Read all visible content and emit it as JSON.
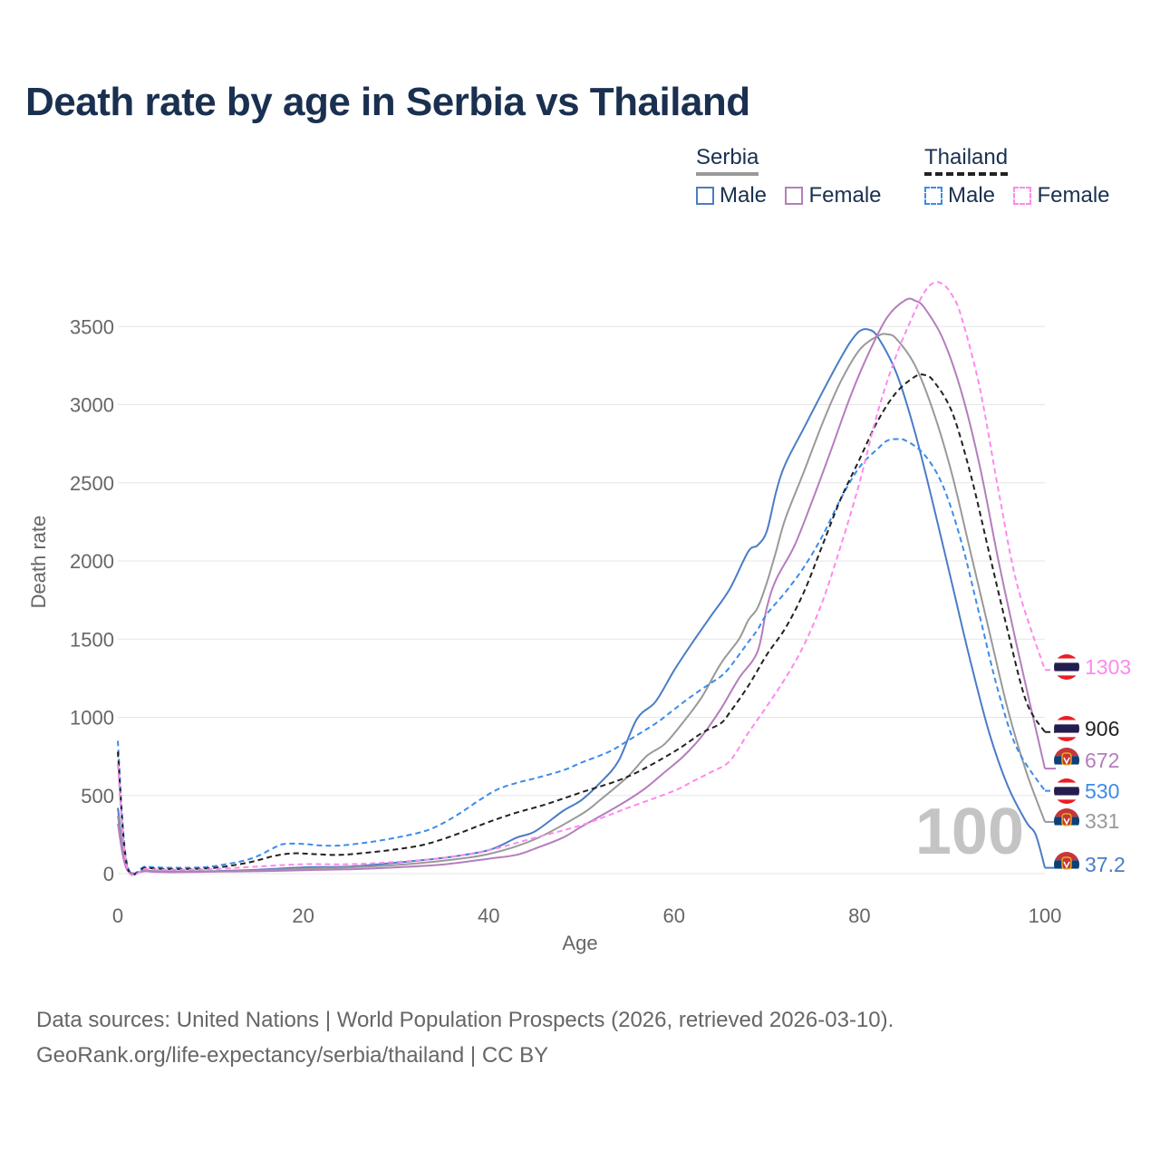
{
  "chart_data": {
    "type": "line",
    "title": "Death rate by age in Serbia vs Thailand",
    "xlabel": "Age",
    "ylabel": "Death rate",
    "xlim": [
      0,
      100
    ],
    "ylim": [
      0,
      3800
    ],
    "x_ticks": [
      0,
      20,
      40,
      60,
      80,
      100
    ],
    "y_ticks": [
      0,
      500,
      1000,
      1500,
      2000,
      2500,
      3000,
      3500
    ],
    "watermark": "100",
    "legend": {
      "groups": [
        {
          "name": "Serbia",
          "items": [
            {
              "label": "Male",
              "color": "#4a7cc7",
              "dash": "solid"
            },
            {
              "label": "Female",
              "color": "#b57dbd",
              "dash": "solid"
            }
          ],
          "color": "#999999",
          "dash": "solid"
        },
        {
          "name": "Thailand",
          "items": [
            {
              "label": "Male",
              "color": "#3d8bea",
              "dash": "dashed"
            },
            {
              "label": "Female",
              "color": "#ff88ee",
              "dash": "dashed"
            }
          ],
          "color": "#222222",
          "dash": "dashed"
        }
      ]
    },
    "series": [
      {
        "name": "Serbia Male",
        "country": "Serbia",
        "color": "#4a7cc7",
        "dash": "solid",
        "end_label": "37.2",
        "points": [
          [
            0,
            420
          ],
          [
            1,
            35
          ],
          [
            3,
            20
          ],
          [
            5,
            15
          ],
          [
            10,
            15
          ],
          [
            15,
            25
          ],
          [
            20,
            40
          ],
          [
            25,
            45
          ],
          [
            30,
            70
          ],
          [
            35,
            100
          ],
          [
            40,
            150
          ],
          [
            43,
            230
          ],
          [
            45,
            270
          ],
          [
            48,
            400
          ],
          [
            50,
            470
          ],
          [
            52,
            580
          ],
          [
            54,
            720
          ],
          [
            56,
            990
          ],
          [
            58,
            1100
          ],
          [
            60,
            1300
          ],
          [
            62,
            1480
          ],
          [
            64,
            1650
          ],
          [
            66,
            1820
          ],
          [
            68,
            2060
          ],
          [
            69,
            2100
          ],
          [
            70,
            2190
          ],
          [
            71,
            2440
          ],
          [
            72,
            2620
          ],
          [
            74,
            2850
          ],
          [
            76,
            3080
          ],
          [
            78,
            3300
          ],
          [
            79,
            3400
          ],
          [
            80,
            3470
          ],
          [
            81,
            3480
          ],
          [
            82,
            3430
          ],
          [
            84,
            3200
          ],
          [
            86,
            2820
          ],
          [
            88,
            2350
          ],
          [
            90,
            1850
          ],
          [
            92,
            1350
          ],
          [
            94,
            900
          ],
          [
            96,
            560
          ],
          [
            98,
            330
          ],
          [
            99,
            250
          ],
          [
            100,
            37.2
          ]
        ]
      },
      {
        "name": "Serbia Total",
        "country": "Serbia",
        "color": "#999999",
        "dash": "solid",
        "end_label": "331",
        "points": [
          [
            0,
            370
          ],
          [
            1,
            30
          ],
          [
            3,
            18
          ],
          [
            5,
            13
          ],
          [
            10,
            14
          ],
          [
            15,
            20
          ],
          [
            20,
            32
          ],
          [
            25,
            40
          ],
          [
            30,
            55
          ],
          [
            35,
            82
          ],
          [
            40,
            125
          ],
          [
            45,
            220
          ],
          [
            50,
            380
          ],
          [
            52,
            470
          ],
          [
            55,
            620
          ],
          [
            57,
            750
          ],
          [
            59,
            830
          ],
          [
            61,
            970
          ],
          [
            63,
            1130
          ],
          [
            65,
            1340
          ],
          [
            67,
            1500
          ],
          [
            68,
            1620
          ],
          [
            69,
            1700
          ],
          [
            70,
            1860
          ],
          [
            71,
            2060
          ],
          [
            72,
            2270
          ],
          [
            74,
            2570
          ],
          [
            76,
            2880
          ],
          [
            78,
            3150
          ],
          [
            80,
            3350
          ],
          [
            82,
            3440
          ],
          [
            83,
            3450
          ],
          [
            84,
            3420
          ],
          [
            86,
            3250
          ],
          [
            88,
            2950
          ],
          [
            90,
            2550
          ],
          [
            92,
            2050
          ],
          [
            94,
            1550
          ],
          [
            96,
            1050
          ],
          [
            98,
            650
          ],
          [
            100,
            331
          ]
        ]
      },
      {
        "name": "Serbia Female",
        "country": "Serbia",
        "color": "#b57dbd",
        "dash": "solid",
        "end_label": "672",
        "points": [
          [
            0,
            320
          ],
          [
            1,
            25
          ],
          [
            3,
            15
          ],
          [
            5,
            10
          ],
          [
            10,
            12
          ],
          [
            15,
            15
          ],
          [
            20,
            22
          ],
          [
            25,
            28
          ],
          [
            30,
            40
          ],
          [
            35,
            58
          ],
          [
            40,
            95
          ],
          [
            43,
            120
          ],
          [
            45,
            160
          ],
          [
            48,
            230
          ],
          [
            50,
            300
          ],
          [
            53,
            400
          ],
          [
            55,
            470
          ],
          [
            57,
            550
          ],
          [
            59,
            650
          ],
          [
            61,
            750
          ],
          [
            63,
            880
          ],
          [
            65,
            1050
          ],
          [
            67,
            1250
          ],
          [
            69,
            1420
          ],
          [
            70,
            1700
          ],
          [
            71,
            1880
          ],
          [
            73,
            2100
          ],
          [
            75,
            2400
          ],
          [
            77,
            2720
          ],
          [
            79,
            3050
          ],
          [
            81,
            3330
          ],
          [
            83,
            3560
          ],
          [
            85,
            3670
          ],
          [
            86,
            3665
          ],
          [
            87,
            3620
          ],
          [
            89,
            3420
          ],
          [
            91,
            3080
          ],
          [
            93,
            2600
          ],
          [
            95,
            2000
          ],
          [
            97,
            1450
          ],
          [
            100,
            672
          ]
        ]
      },
      {
        "name": "Thailand Male",
        "country": "Thailand",
        "color": "#3d8bea",
        "dash": "dashed",
        "end_label": "530",
        "points": [
          [
            0,
            850
          ],
          [
            1,
            60
          ],
          [
            3,
            45
          ],
          [
            5,
            38
          ],
          [
            8,
            38
          ],
          [
            10,
            45
          ],
          [
            13,
            75
          ],
          [
            15,
            110
          ],
          [
            17,
            170
          ],
          [
            18,
            190
          ],
          [
            20,
            190
          ],
          [
            22,
            180
          ],
          [
            24,
            180
          ],
          [
            27,
            200
          ],
          [
            30,
            230
          ],
          [
            33,
            270
          ],
          [
            35,
            320
          ],
          [
            37,
            390
          ],
          [
            39,
            470
          ],
          [
            41,
            540
          ],
          [
            43,
            580
          ],
          [
            45,
            610
          ],
          [
            48,
            660
          ],
          [
            50,
            710
          ],
          [
            53,
            780
          ],
          [
            55,
            850
          ],
          [
            58,
            960
          ],
          [
            60,
            1050
          ],
          [
            62,
            1140
          ],
          [
            64,
            1220
          ],
          [
            65,
            1260
          ],
          [
            66,
            1320
          ],
          [
            68,
            1480
          ],
          [
            69,
            1560
          ],
          [
            70,
            1660
          ],
          [
            72,
            1800
          ],
          [
            74,
            1960
          ],
          [
            76,
            2160
          ],
          [
            78,
            2400
          ],
          [
            80,
            2600
          ],
          [
            82,
            2720
          ],
          [
            83,
            2770
          ],
          [
            84,
            2780
          ],
          [
            85,
            2770
          ],
          [
            87,
            2680
          ],
          [
            89,
            2480
          ],
          [
            91,
            2120
          ],
          [
            93,
            1640
          ],
          [
            95,
            1160
          ],
          [
            97,
            800
          ],
          [
            100,
            530
          ]
        ]
      },
      {
        "name": "Thailand Total",
        "country": "Thailand",
        "color": "#222222",
        "dash": "dashed",
        "end_label": "906",
        "points": [
          [
            0,
            780
          ],
          [
            1,
            50
          ],
          [
            3,
            38
          ],
          [
            5,
            30
          ],
          [
            10,
            35
          ],
          [
            14,
            70
          ],
          [
            17,
            115
          ],
          [
            19,
            130
          ],
          [
            21,
            125
          ],
          [
            24,
            120
          ],
          [
            27,
            135
          ],
          [
            30,
            155
          ],
          [
            33,
            185
          ],
          [
            36,
            240
          ],
          [
            40,
            330
          ],
          [
            43,
            390
          ],
          [
            46,
            440
          ],
          [
            50,
            520
          ],
          [
            55,
            620
          ],
          [
            60,
            780
          ],
          [
            63,
            900
          ],
          [
            65,
            960
          ],
          [
            66,
            1030
          ],
          [
            68,
            1200
          ],
          [
            70,
            1400
          ],
          [
            72,
            1570
          ],
          [
            74,
            1800
          ],
          [
            76,
            2100
          ],
          [
            78,
            2400
          ],
          [
            80,
            2650
          ],
          [
            82,
            2900
          ],
          [
            84,
            3080
          ],
          [
            86,
            3180
          ],
          [
            87,
            3190
          ],
          [
            88,
            3150
          ],
          [
            90,
            2950
          ],
          [
            92,
            2550
          ],
          [
            94,
            2050
          ],
          [
            96,
            1550
          ],
          [
            98,
            1100
          ],
          [
            100,
            906
          ]
        ]
      },
      {
        "name": "Thailand Female",
        "country": "Thailand",
        "color": "#ff88ee",
        "dash": "dashed",
        "end_label": "1303",
        "points": [
          [
            0,
            700
          ],
          [
            1,
            40
          ],
          [
            3,
            30
          ],
          [
            5,
            25
          ],
          [
            10,
            28
          ],
          [
            15,
            45
          ],
          [
            20,
            60
          ],
          [
            25,
            60
          ],
          [
            30,
            75
          ],
          [
            35,
            100
          ],
          [
            40,
            150
          ],
          [
            45,
            230
          ],
          [
            50,
            310
          ],
          [
            55,
            420
          ],
          [
            60,
            530
          ],
          [
            62,
            590
          ],
          [
            64,
            650
          ],
          [
            66,
            720
          ],
          [
            68,
            900
          ],
          [
            70,
            1070
          ],
          [
            72,
            1250
          ],
          [
            74,
            1460
          ],
          [
            76,
            1740
          ],
          [
            78,
            2100
          ],
          [
            80,
            2500
          ],
          [
            82,
            2960
          ],
          [
            84,
            3320
          ],
          [
            86,
            3600
          ],
          [
            87,
            3720
          ],
          [
            88,
            3780
          ],
          [
            89,
            3770
          ],
          [
            90,
            3700
          ],
          [
            91,
            3560
          ],
          [
            93,
            3100
          ],
          [
            95,
            2450
          ],
          [
            97,
            1850
          ],
          [
            100,
            1303
          ]
        ]
      }
    ],
    "end_labels_order": [
      {
        "series": "Thailand Female",
        "text": "1303",
        "color": "#ff88ee",
        "flag": "Thailand"
      },
      {
        "series": "Thailand Total",
        "text": "906",
        "color": "#222222",
        "flag": "Thailand"
      },
      {
        "series": "Serbia Female",
        "text": "672",
        "color": "#b57dbd",
        "flag": "Serbia"
      },
      {
        "series": "Thailand Male",
        "text": "530",
        "color": "#3d8bea",
        "flag": "Thailand"
      },
      {
        "series": "Serbia Total",
        "text": "331",
        "color": "#999999",
        "flag": "Serbia"
      },
      {
        "series": "Serbia Male",
        "text": "37.2",
        "color": "#4a7cc7",
        "flag": "Serbia"
      }
    ]
  },
  "footer": {
    "line1": "Data sources: United Nations | World Population Prospects (2026, retrieved 2026-03-10).",
    "line2": "GeoRank.org/life-expectancy/serbia/thailand | CC BY"
  },
  "colors": {
    "title": "#1a3050",
    "grid": "#e6e6e6",
    "axis_text": "#666666"
  }
}
